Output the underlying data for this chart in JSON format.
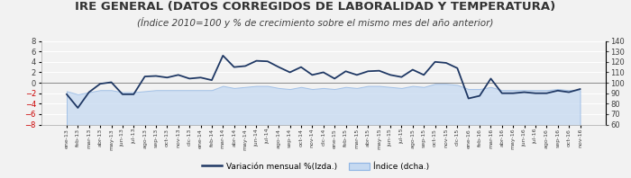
{
  "title": "IRE GENERAL (DATOS CORREGIDOS DE LABORALIDAD Y TEMPERATURA)",
  "subtitle": "(Índice 2010=100 y % de crecimiento sobre el mismo mes del año anterior)",
  "title_fontsize": 9.5,
  "subtitle_fontsize": 7.5,
  "labels": [
    "ene-13",
    "feb-13",
    "mar-13",
    "abr-13",
    "may-13",
    "jun-13",
    "jul-13",
    "ago-13",
    "sep-13",
    "oct-13",
    "nov-13",
    "dic-13",
    "ene-14",
    "feb-14",
    "mar-14",
    "abr-14",
    "may-14",
    "jun-14",
    "jul-14",
    "ago-14",
    "sep-14",
    "oct-14",
    "nov-14",
    "dic-14",
    "ene-15",
    "feb-15",
    "mar-15",
    "abr-15",
    "may-15",
    "jun-15",
    "jul-15",
    "ago-15",
    "sep-15",
    "oct-15",
    "nov-15",
    "dic-15",
    "ene-16",
    "feb-16",
    "mar-16",
    "abr-16",
    "may-16",
    "jun-16",
    "jul-16",
    "ago-16",
    "sep-16",
    "oct-16",
    "nov-16"
  ],
  "variacion": [
    -2.2,
    -4.8,
    -1.8,
    -0.2,
    0.1,
    -2.2,
    -2.2,
    1.2,
    1.3,
    1.0,
    1.5,
    0.8,
    1.0,
    0.5,
    5.2,
    3.0,
    3.2,
    4.2,
    4.1,
    3.0,
    2.0,
    3.0,
    1.5,
    2.0,
    0.8,
    2.2,
    1.5,
    2.2,
    2.3,
    1.5,
    1.1,
    2.5,
    1.5,
    4.0,
    3.8,
    2.8,
    -3.0,
    -2.5,
    0.8,
    -2.0,
    -2.0,
    -1.8,
    -2.0,
    -2.0,
    -1.5,
    -1.8,
    -1.2
  ],
  "indice": [
    92,
    89,
    91,
    93,
    93,
    91,
    91,
    92,
    93,
    93,
    93,
    93,
    93,
    93,
    97,
    95,
    96,
    97,
    97,
    95,
    94,
    96,
    94,
    95,
    94,
    96,
    95,
    97,
    97,
    96,
    95,
    97,
    96,
    99,
    99,
    98,
    94,
    94,
    96,
    93,
    93,
    93,
    93,
    93,
    94,
    93,
    93
  ],
  "left_ylim": [
    -8,
    8
  ],
  "right_ylim": [
    60,
    140
  ],
  "left_yticks": [
    -8,
    -6,
    -4,
    -2,
    0,
    2,
    4,
    6,
    8
  ],
  "right_yticks": [
    60,
    70,
    80,
    90,
    100,
    110,
    120,
    130,
    140
  ],
  "line_color": "#1f3864",
  "fill_color": "#c5d9f1",
  "fill_edge_color": "#8eb4e3",
  "plot_bg_color": "#e8e8e8",
  "fig_bg_color": "#f2f2f2",
  "grid_color": "#ffffff",
  "zero_line_color": "#888888",
  "neg_tick_color": "#cc0000",
  "pos_tick_color": "#404040",
  "legend_line_label": "Variación mensual %(Izda.)",
  "legend_fill_label": "Índice (dcha.)"
}
